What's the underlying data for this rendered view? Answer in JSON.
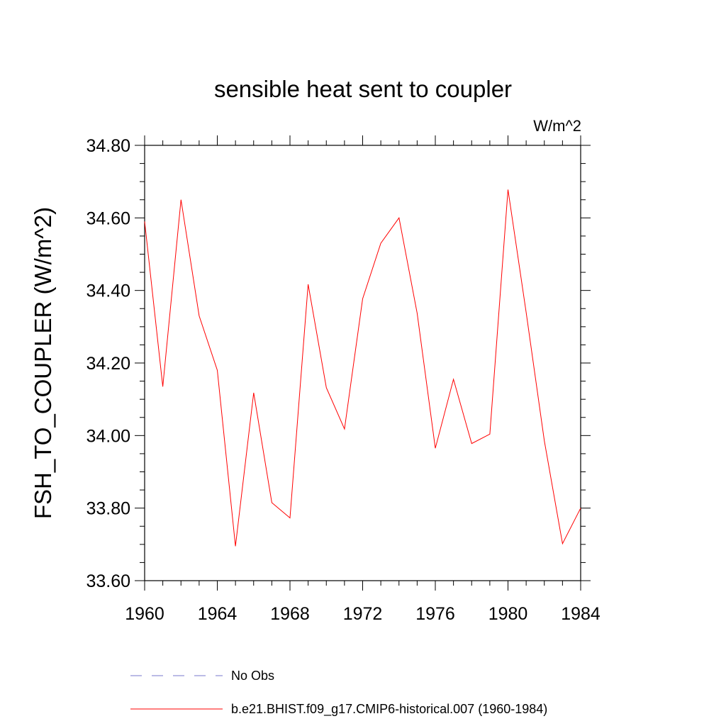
{
  "chart_data": {
    "type": "line",
    "title": "sensible heat sent to coupler",
    "units": "W/m^2",
    "ylabel": "FSH_TO_COUPLER  (W/m^2)",
    "xlabel": "",
    "xlim": [
      1960,
      1984
    ],
    "ylim": [
      33.6,
      34.8
    ],
    "x_ticks": [
      1960,
      1964,
      1968,
      1972,
      1976,
      1980,
      1984
    ],
    "y_ticks": [
      33.6,
      33.8,
      34.0,
      34.2,
      34.4,
      34.6,
      34.8
    ],
    "x_tick_labels": [
      "1960",
      "1964",
      "1968",
      "1972",
      "1976",
      "1980",
      "1984"
    ],
    "y_tick_labels": [
      "33.60",
      "33.80",
      "34.00",
      "34.20",
      "34.40",
      "34.60",
      "34.80"
    ],
    "grid": false,
    "legend_position": "bottom",
    "x": [
      1960,
      1961,
      1962,
      1963,
      1964,
      1965,
      1966,
      1967,
      1968,
      1969,
      1970,
      1971,
      1972,
      1973,
      1974,
      1975,
      1976,
      1977,
      1978,
      1979,
      1980,
      1981,
      1982,
      1983,
      1984
    ],
    "series": [
      {
        "name": "b.e21.BHIST.f09_g17.CMIP6-historical.007 (1960-1984)",
        "color": "#ff0000",
        "style": "solid",
        "values": [
          34.59,
          34.135,
          34.65,
          34.33,
          34.18,
          33.695,
          34.118,
          33.815,
          33.773,
          34.417,
          34.132,
          34.018,
          34.377,
          34.53,
          34.6,
          34.337,
          33.965,
          34.155,
          33.978,
          34.004,
          34.678,
          34.34,
          33.985,
          33.702,
          33.8
        ]
      }
    ],
    "legend": [
      {
        "label": "No Obs",
        "color": "#7777cc",
        "style": "dashed"
      },
      {
        "label": "b.e21.BHIST.f09_g17.CMIP6-historical.007 (1960-1984)",
        "color": "#ff0000",
        "style": "solid"
      }
    ]
  }
}
